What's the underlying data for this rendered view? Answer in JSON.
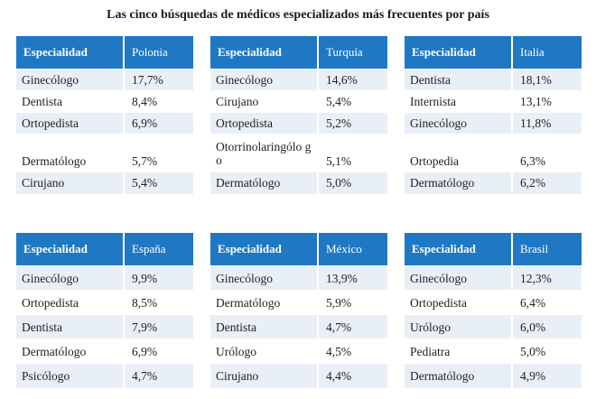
{
  "title": "Las cinco búsquedas de médicos especializados más frecuentes por país",
  "tables": [
    {
      "header": "Especialidad",
      "country": "Polonia",
      "rows": [
        {
          "name": "Ginecólogo",
          "pct": "17,7%"
        },
        {
          "name": "Dentista",
          "pct": "8,4%"
        },
        {
          "name": "Ortopedista",
          "pct": "6,9%"
        },
        {
          "name": "Dermatólogo",
          "pct": "5,7%"
        },
        {
          "name": "Cirujano",
          "pct": "5,4%"
        }
      ]
    },
    {
      "header": "Especialidad",
      "country": "Turquía",
      "rows": [
        {
          "name": "Ginecólogo",
          "pct": "14,6%"
        },
        {
          "name": "Cirujano",
          "pct": "5,4%"
        },
        {
          "name": "Ortopedista",
          "pct": "5,2%"
        },
        {
          "name": "Otorrinolaringólo go",
          "pct": "5,1%"
        },
        {
          "name": "Dermatólogo",
          "pct": "5,0%"
        }
      ]
    },
    {
      "header": "Especialidad",
      "country": "Italia",
      "rows": [
        {
          "name": "Dentista",
          "pct": "18,1%"
        },
        {
          "name": "Internista",
          "pct": "13,1%"
        },
        {
          "name": "Ginecólogo",
          "pct": "11,8%"
        },
        {
          "name": "Ortopedia",
          "pct": "6,3%"
        },
        {
          "name": "Dermatólogo",
          "pct": "6,2%"
        }
      ]
    },
    {
      "header": "Especialidad",
      "country": "España",
      "rows": [
        {
          "name": "Ginecólogo",
          "pct": "9,9%"
        },
        {
          "name": "Ortopedista",
          "pct": "8,5%"
        },
        {
          "name": "Dentista",
          "pct": "7,9%"
        },
        {
          "name": "Dermatólogo",
          "pct": "6,9%"
        },
        {
          "name": "Psicólogo",
          "pct": "4,7%"
        }
      ]
    },
    {
      "header": "Especialidad",
      "country": "México",
      "rows": [
        {
          "name": "Ginecólogo",
          "pct": "13,9%"
        },
        {
          "name": "Dermatólogo",
          "pct": "5,9%"
        },
        {
          "name": "Dentista",
          "pct": "4,7%"
        },
        {
          "name": "Urólogo",
          "pct": "4,5%"
        },
        {
          "name": "Cirujano",
          "pct": "4,4%"
        }
      ]
    },
    {
      "header": "Especialidad",
      "country": "Brasil",
      "rows": [
        {
          "name": "Ginecólogo",
          "pct": "12,3%"
        },
        {
          "name": "Ortopedista",
          "pct": "6,4%"
        },
        {
          "name": "Urólogo",
          "pct": "6,0%"
        },
        {
          "name": "Pediatra",
          "pct": "5,0%"
        },
        {
          "name": "Dermatólogo",
          "pct": "4,9%"
        }
      ]
    }
  ]
}
